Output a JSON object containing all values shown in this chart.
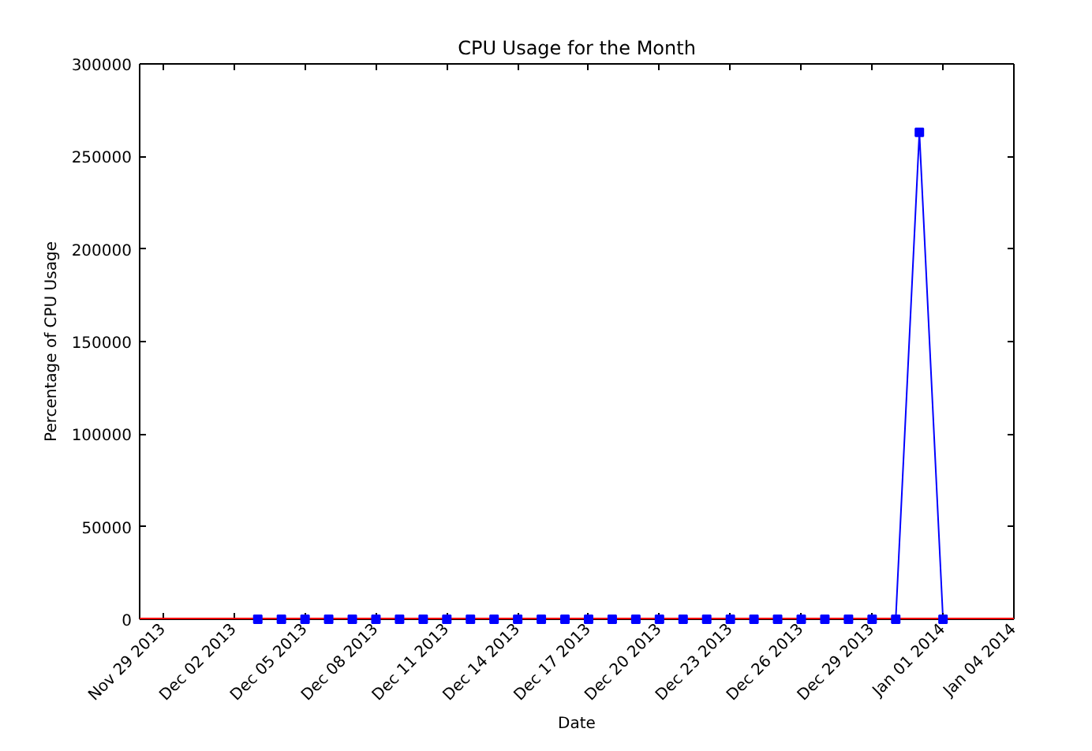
{
  "chart_data": {
    "type": "line",
    "title": "CPU Usage for the Month",
    "xlabel": "Date",
    "ylabel": "Percentage of CPU Usage",
    "x": [
      "2013-12-03",
      "2013-12-04",
      "2013-12-05",
      "2013-12-06",
      "2013-12-07",
      "2013-12-08",
      "2013-12-09",
      "2013-12-10",
      "2013-12-11",
      "2013-12-12",
      "2013-12-13",
      "2013-12-14",
      "2013-12-15",
      "2013-12-16",
      "2013-12-17",
      "2013-12-18",
      "2013-12-19",
      "2013-12-20",
      "2013-12-21",
      "2013-12-22",
      "2013-12-23",
      "2013-12-24",
      "2013-12-25",
      "2013-12-26",
      "2013-12-27",
      "2013-12-28",
      "2013-12-29",
      "2013-12-30",
      "2013-12-31",
      "2014-01-01"
    ],
    "series": [
      {
        "color": "#0000ff",
        "values": [
          0,
          0,
          0,
          0,
          0,
          0,
          0,
          0,
          0,
          0,
          0,
          0,
          0,
          0,
          0,
          0,
          0,
          0,
          0,
          0,
          0,
          0,
          0,
          0,
          0,
          0,
          0,
          0,
          263000,
          0
        ]
      }
    ],
    "marker": "square",
    "line_style": "solid",
    "xlim": [
      "2013-11-28",
      "2014-01-04"
    ],
    "xticks": [
      {
        "value": "2013-11-29",
        "label": "Nov 29 2013"
      },
      {
        "value": "2013-12-02",
        "label": "Dec 02 2013"
      },
      {
        "value": "2013-12-05",
        "label": "Dec 05 2013"
      },
      {
        "value": "2013-12-08",
        "label": "Dec 08 2013"
      },
      {
        "value": "2013-12-11",
        "label": "Dec 11 2013"
      },
      {
        "value": "2013-12-14",
        "label": "Dec 14 2013"
      },
      {
        "value": "2013-12-17",
        "label": "Dec 17 2013"
      },
      {
        "value": "2013-12-20",
        "label": "Dec 20 2013"
      },
      {
        "value": "2013-12-23",
        "label": "Dec 23 2013"
      },
      {
        "value": "2013-12-26",
        "label": "Dec 26 2013"
      },
      {
        "value": "2013-12-29",
        "label": "Dec 29 2013"
      },
      {
        "value": "2014-01-01",
        "label": "Jan 01 2014"
      },
      {
        "value": "2014-01-04",
        "label": "Jan 04 2014"
      }
    ],
    "ylim": [
      0,
      300000
    ],
    "yticks": [
      0,
      50000,
      100000,
      150000,
      200000,
      250000,
      300000
    ],
    "ref_lines": [
      {
        "axis": "y",
        "value": 0,
        "color": "#ff0000"
      }
    ]
  }
}
